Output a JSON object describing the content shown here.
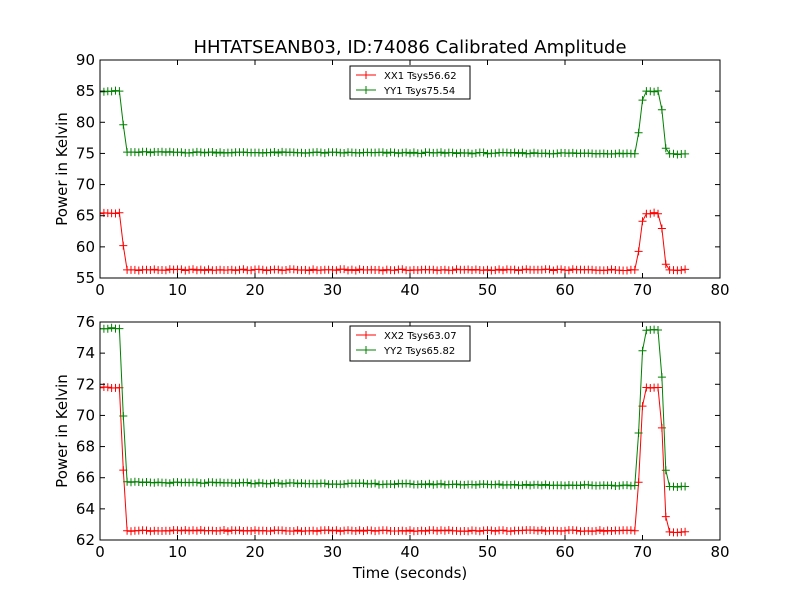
{
  "figure": {
    "title": "HHTATSEANB03, ID:74086 Calibrated Amplitude",
    "xlabel": "Time (seconds)"
  },
  "chart_data": [
    {
      "type": "line",
      "ylabel": "Power in Kelvin",
      "xlim": [
        0,
        80
      ],
      "ylim": [
        55,
        90
      ],
      "xticks": [
        0,
        10,
        20,
        30,
        40,
        50,
        60,
        70,
        80
      ],
      "yticks": [
        55,
        60,
        65,
        70,
        75,
        80,
        85,
        90
      ],
      "grid": false,
      "legend": "top-center",
      "marker": "plus",
      "series": [
        {
          "name": "XX1 Tsys56.62",
          "color": "#ff0000",
          "profile": [
            [
              0,
              65.4
            ],
            [
              2.5,
              65.4
            ],
            [
              2.8,
              64.0
            ],
            [
              3.2,
              56.3
            ],
            [
              69.3,
              56.3
            ],
            [
              69.7,
              62.3
            ],
            [
              70.2,
              65.4
            ],
            [
              72.2,
              65.4
            ],
            [
              72.5,
              63.0
            ],
            [
              72.9,
              57.5
            ],
            [
              73.3,
              56.3
            ],
            [
              75.8,
              56.3
            ]
          ]
        },
        {
          "name": "YY1 Tsys75.54",
          "color": "#008000",
          "profile": [
            [
              0,
              85.0
            ],
            [
              2.5,
              85.0
            ],
            [
              2.8,
              84.0
            ],
            [
              3.2,
              75.2
            ],
            [
              69.3,
              75.0
            ],
            [
              69.7,
              81.5
            ],
            [
              70.2,
              85.0
            ],
            [
              72.2,
              85.0
            ],
            [
              72.5,
              82.0
            ],
            [
              72.9,
              76.2
            ],
            [
              73.3,
              74.9
            ],
            [
              75.8,
              74.9
            ]
          ]
        }
      ]
    },
    {
      "type": "line",
      "ylabel": "Power in Kelvin",
      "xlim": [
        0,
        80
      ],
      "ylim": [
        62,
        76
      ],
      "xticks": [
        0,
        10,
        20,
        30,
        40,
        50,
        60,
        70,
        80
      ],
      "yticks": [
        62,
        64,
        66,
        68,
        70,
        72,
        74,
        76
      ],
      "grid": false,
      "legend": "top-center",
      "marker": "plus",
      "series": [
        {
          "name": "XX2 Tsys63.07",
          "color": "#ff0000",
          "profile": [
            [
              0,
              71.8
            ],
            [
              2.5,
              71.8
            ],
            [
              2.8,
              70.3
            ],
            [
              3.2,
              62.6
            ],
            [
              69.3,
              62.6
            ],
            [
              69.7,
              68.8
            ],
            [
              70.2,
              71.8
            ],
            [
              72.2,
              71.8
            ],
            [
              72.5,
              69.2
            ],
            [
              72.9,
              63.8
            ],
            [
              73.3,
              62.5
            ],
            [
              75.8,
              62.5
            ]
          ]
        },
        {
          "name": "YY2 Tsys65.82",
          "color": "#008000",
          "profile": [
            [
              0,
              75.6
            ],
            [
              2.5,
              75.6
            ],
            [
              2.8,
              74.2
            ],
            [
              3.2,
              65.7
            ],
            [
              69.3,
              65.5
            ],
            [
              69.7,
              72.2
            ],
            [
              70.2,
              75.5
            ],
            [
              72.2,
              75.5
            ],
            [
              72.5,
              72.5
            ],
            [
              72.9,
              66.8
            ],
            [
              73.3,
              65.4
            ],
            [
              75.8,
              65.4
            ]
          ]
        }
      ]
    }
  ]
}
